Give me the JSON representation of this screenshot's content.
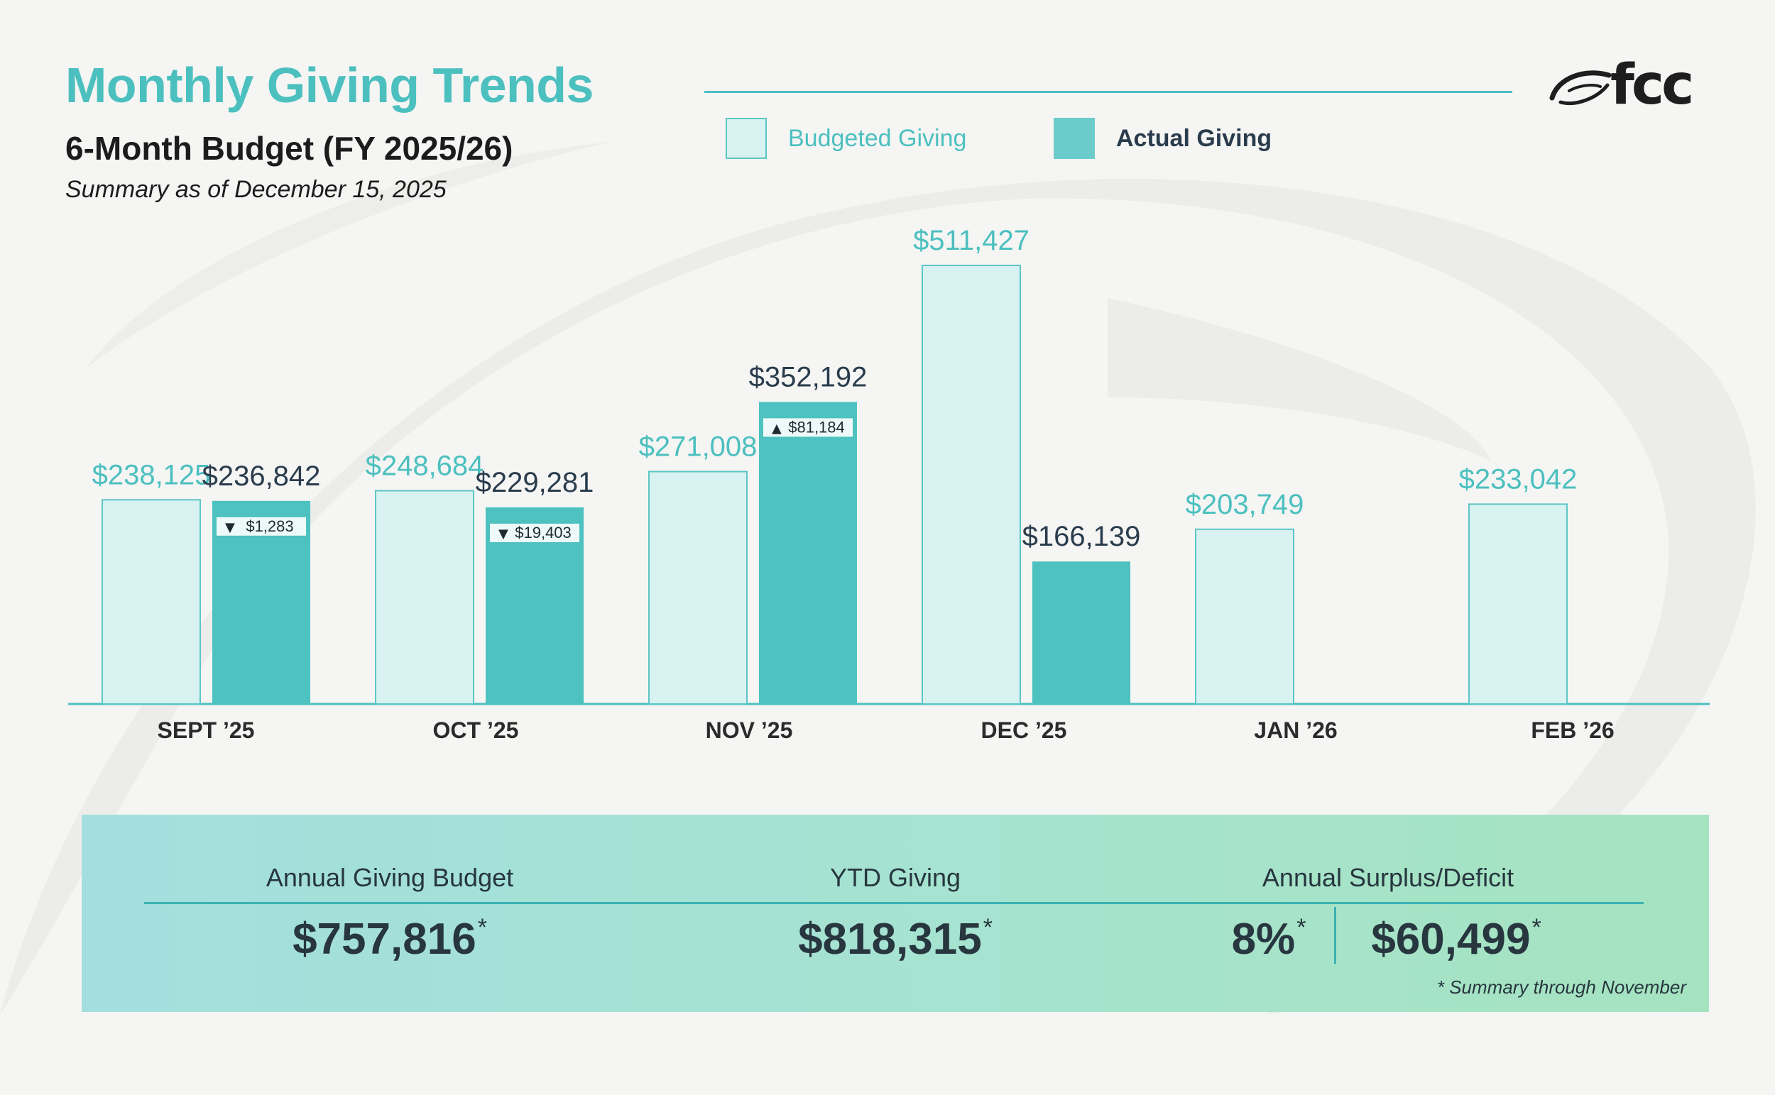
{
  "header": {
    "title": "Monthly Giving Trends",
    "subtitle": "6-Month Budget (FY 2025/26)",
    "as_of": "Summary as of December 15, 2025"
  },
  "logo": {
    "text": "fcc",
    "icon": "swoosh-logo-icon"
  },
  "legend": {
    "budget_label": "Budgeted Giving",
    "actual_label": "Actual Giving"
  },
  "colors": {
    "accent": "#4cc0bf",
    "budget_fill": "#d8f1f1",
    "budget_stroke": "#5cc6c4",
    "actual_fill": "#4dc2c0",
    "dark_text": "#2a3c4c"
  },
  "chart_data": {
    "type": "bar",
    "categories": [
      "SEPT ’25",
      "OCT ’25",
      "NOV ’25",
      "DEC ’25",
      "JAN ’26",
      "FEB ’26"
    ],
    "series": [
      {
        "name": "Budgeted Giving",
        "values": [
          238125,
          248684,
          271008,
          511427,
          203749,
          233042
        ],
        "labels": [
          "$238,125",
          "$248,684",
          "$271,008",
          "$511,427",
          "$203,749",
          "$233,042"
        ]
      },
      {
        "name": "Actual Giving",
        "values": [
          236842,
          229281,
          352192,
          166139,
          null,
          null
        ],
        "labels": [
          "$236,842",
          "$229,281",
          "$352,192",
          "$166,139",
          null,
          null
        ]
      }
    ],
    "variances": [
      {
        "index": 0,
        "direction": "down",
        "symbol": "▼",
        "label": "$1,283"
      },
      {
        "index": 1,
        "direction": "down",
        "symbol": "▼",
        "label": "$19,403"
      },
      {
        "index": 2,
        "direction": "up",
        "symbol": "▲",
        "label": "$81,184"
      }
    ],
    "ylim": [
      0,
      511427
    ],
    "title": "",
    "xlabel": "",
    "ylabel": "",
    "grid": false
  },
  "summary": {
    "budget_label": "Annual Giving Budget",
    "budget_value": "$757,816",
    "ytd_label": "YTD Giving",
    "ytd_value": "$818,315",
    "surplus_label": "Annual Surplus/Deficit",
    "surplus_pct": "8%",
    "surplus_value": "$60,499",
    "asterisk": "*",
    "note": "*  Summary through November"
  }
}
